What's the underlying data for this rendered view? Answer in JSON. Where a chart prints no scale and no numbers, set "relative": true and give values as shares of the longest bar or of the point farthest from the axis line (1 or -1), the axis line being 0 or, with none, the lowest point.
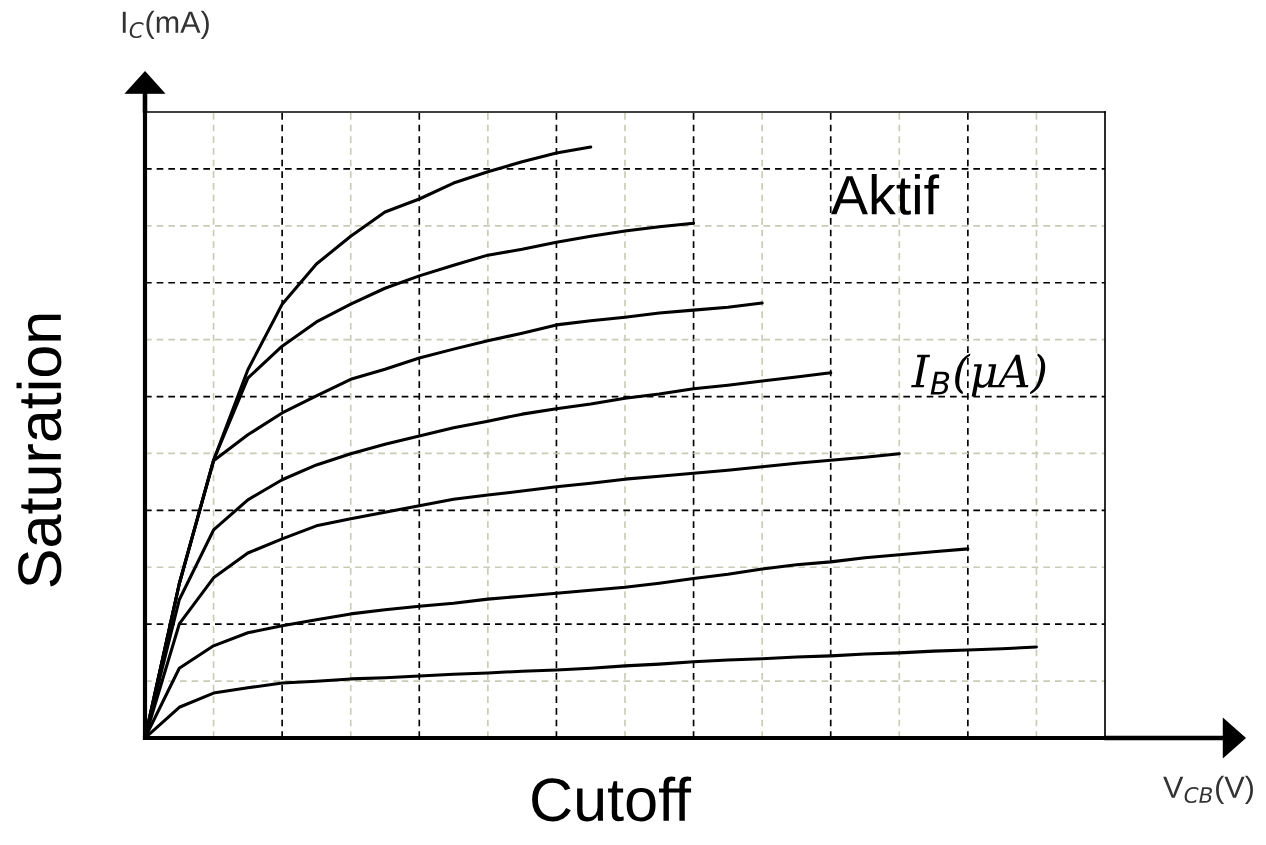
{
  "chart_data": {
    "type": "line",
    "relative": true,
    "xlabel": "V$_{CB}$(V)",
    "ylabel": "I$_{C}$(mA)",
    "grid": true,
    "line_style": "solid",
    "annotations": [
      "Saturation",
      "Cutoff",
      "Aktif",
      "I$_{B}$(μA)"
    ],
    "categories": [
      null,
      null,
      null,
      null,
      null,
      null,
      null,
      null,
      null,
      null,
      null,
      null,
      null,
      null,
      null,
      null,
      null,
      null,
      null,
      null,
      null,
      null,
      null,
      null,
      null,
      null,
      null,
      null
    ],
    "series": [
      {
        "color": "#000000",
        "values": [
          0,
          0.261,
          0.47,
          0.623,
          0.734,
          0.802,
          0.849,
          0.89,
          0.912,
          0.939,
          0.958,
          0.975,
          0.99,
          1,
          null,
          null,
          null,
          null,
          null,
          null,
          null,
          null,
          null,
          null,
          null,
          null,
          null,
          null
        ]
      },
      {
        "color": "#000000",
        "values": [
          0,
          0.261,
          0.47,
          0.609,
          0.663,
          0.704,
          0.734,
          0.761,
          0.782,
          0.8,
          0.817,
          0.827,
          0.839,
          0.849,
          0.858,
          0.865,
          0.871,
          null,
          null,
          null,
          null,
          null,
          null,
          null,
          null,
          null,
          null,
          null
        ]
      },
      {
        "color": "#000000",
        "values": [
          0,
          0.261,
          0.469,
          0.513,
          0.55,
          0.579,
          0.607,
          0.624,
          0.643,
          0.658,
          0.672,
          0.685,
          0.699,
          0.706,
          0.712,
          0.719,
          0.724,
          0.729,
          0.736,
          null,
          null,
          null,
          null,
          null,
          null,
          null,
          null,
          null
        ]
      },
      {
        "color": "#000000",
        "values": [
          0,
          0.234,
          0.352,
          0.403,
          0.437,
          0.462,
          0.481,
          0.497,
          0.511,
          0.525,
          0.536,
          0.548,
          0.557,
          0.565,
          0.575,
          0.582,
          0.591,
          0.597,
          0.604,
          0.611,
          0.618,
          null,
          null,
          null,
          null,
          null,
          null,
          null
        ]
      },
      {
        "color": "#000000",
        "values": [
          0,
          0.193,
          0.271,
          0.313,
          0.337,
          0.359,
          0.371,
          0.382,
          0.393,
          0.404,
          0.411,
          0.418,
          0.425,
          0.431,
          0.438,
          0.443,
          0.448,
          0.453,
          0.459,
          0.465,
          0.47,
          0.475,
          0.481,
          null,
          null,
          null,
          null,
          null
        ]
      },
      {
        "color": "#000000",
        "values": [
          0,
          0.118,
          0.156,
          0.178,
          0.19,
          0.2,
          0.21,
          0.217,
          0.223,
          0.228,
          0.235,
          0.24,
          0.245,
          0.25,
          0.255,
          0.262,
          0.27,
          0.277,
          0.286,
          0.293,
          0.298,
          0.305,
          0.31,
          0.315,
          0.32,
          null,
          null,
          null
        ]
      },
      {
        "color": "#000000",
        "values": [
          0,
          0.052,
          0.076,
          0.085,
          0.093,
          0.096,
          0.1,
          0.102,
          0.105,
          0.108,
          0.11,
          0.113,
          0.115,
          0.118,
          0.122,
          0.125,
          0.129,
          0.132,
          0.134,
          0.137,
          0.139,
          0.142,
          0.144,
          0.147,
          0.149,
          0.151,
          0.154,
          null
        ]
      }
    ]
  }
}
